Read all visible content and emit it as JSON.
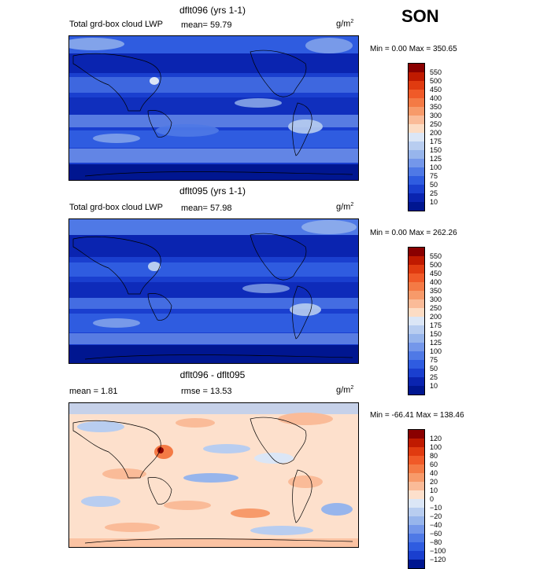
{
  "season": "SON",
  "unit_base": "g/m",
  "unit_exp": "2",
  "panels": [
    {
      "title": "dflt096 (yrs 1-1)",
      "varname": "Total grd-box cloud LWP",
      "stat1": "mean=  59.79",
      "minmax": "Min =    0.00 Max = 350.65",
      "scale": "lwp"
    },
    {
      "title": "dflt095 (yrs 1-1)",
      "varname": "Total grd-box cloud LWP",
      "stat1": "mean=  57.98",
      "minmax": "Min =    0.00 Max = 262.26",
      "scale": "lwp"
    },
    {
      "title": "dflt096 - dflt095",
      "stat1": "mean =    1.81",
      "stat2": "rmse =   13.53",
      "minmax": "Min = -66.41 Max = 138.46",
      "scale": "diff"
    }
  ],
  "colorbars": {
    "lwp": {
      "labels": [
        "550",
        "500",
        "450",
        "400",
        "350",
        "300",
        "250",
        "200",
        "175",
        "150",
        "125",
        "100",
        "75",
        "50",
        "25",
        "10"
      ],
      "colors": [
        "#8a0000",
        "#c01a00",
        "#e03b10",
        "#f05a28",
        "#f47a45",
        "#f79a6a",
        "#fabb98",
        "#fcdcc4",
        "#dbe6f6",
        "#b8cdf0",
        "#97b5ec",
        "#7497ea",
        "#4f79e6",
        "#2f5ce0",
        "#1a3fcf",
        "#0a24b0",
        "#001690"
      ]
    },
    "diff": {
      "labels": [
        "120",
        "100",
        "80",
        "60",
        "40",
        "20",
        "10",
        "0",
        "−10",
        "−20",
        "−40",
        "−60",
        "−80",
        "−100",
        "−120"
      ],
      "colors": [
        "#8a0000",
        "#c01a00",
        "#e03b10",
        "#f05a28",
        "#f47a45",
        "#f79a6a",
        "#fabb98",
        "#fde0cc",
        "#dbe6f6",
        "#b8cdf0",
        "#97b5ec",
        "#7497ea",
        "#4f79e6",
        "#2f5ce0",
        "#1a3fcf",
        "#001690"
      ]
    }
  }
}
